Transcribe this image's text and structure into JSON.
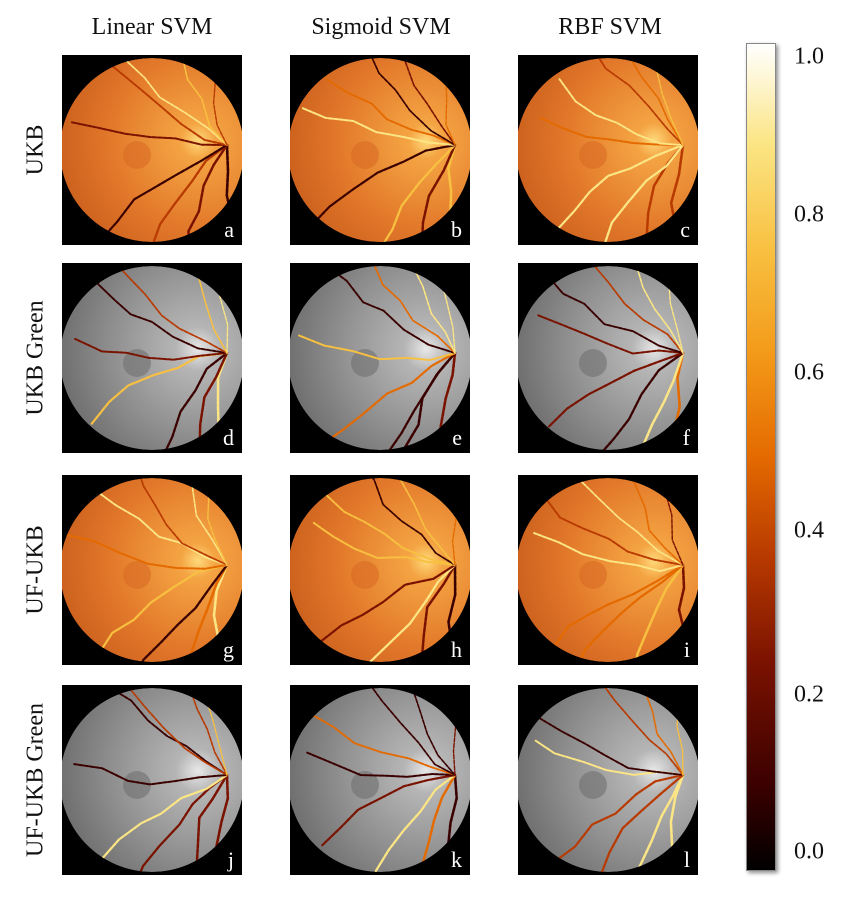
{
  "columns": [
    "Linear SVM",
    "Sigmoid SVM",
    "RBF SVM"
  ],
  "rows": [
    "UKB",
    "UKB Green",
    "UF-UKB",
    "UF-UKB Green"
  ],
  "panel_labels": [
    "a",
    "b",
    "c",
    "d",
    "e",
    "f",
    "g",
    "h",
    "i",
    "j",
    "k",
    "l"
  ],
  "colorbar": {
    "ticks": [
      "1.0",
      "0.8",
      "0.6",
      "0.4",
      "0.2",
      "0.0"
    ],
    "colors": [
      "#000000",
      "#7a1200",
      "#e46a00",
      "#f8c040",
      "#ffffff"
    ]
  },
  "image_styles": {
    "color_fundus": "#e87c2c",
    "green_fundus": "#9a9a9a"
  }
}
